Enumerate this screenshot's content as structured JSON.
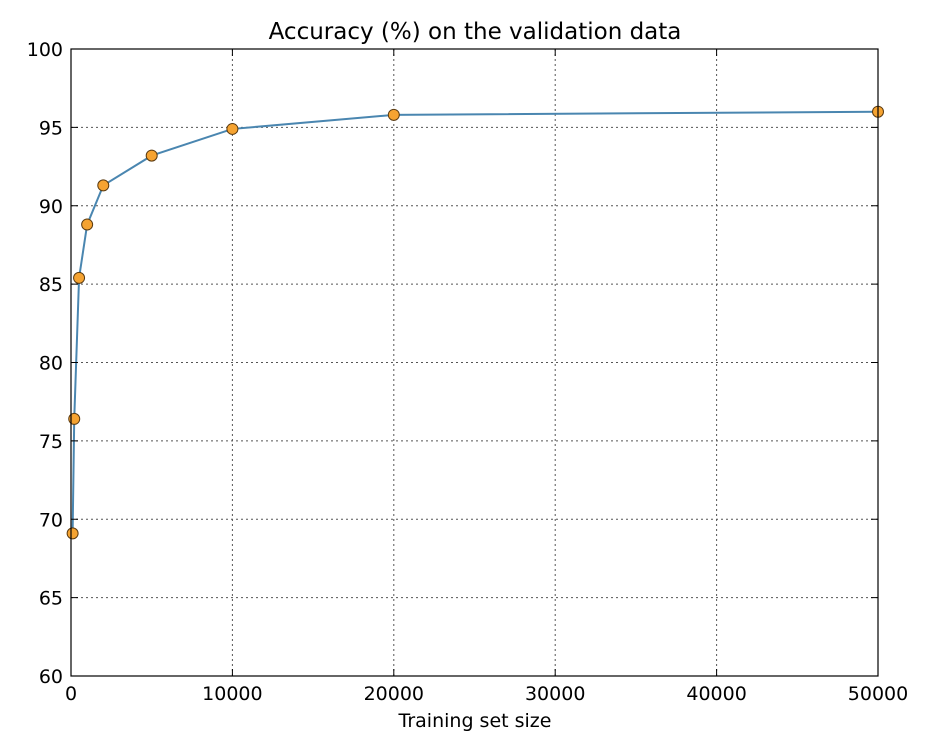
{
  "chart_data": {
    "type": "line",
    "title": "Accuracy (%) on the validation data",
    "xlabel": "Training set size",
    "ylabel": "",
    "xlim": [
      0,
      50000
    ],
    "ylim": [
      60,
      100
    ],
    "xticks": [
      0,
      10000,
      20000,
      30000,
      40000,
      50000
    ],
    "yticks": [
      60,
      65,
      70,
      75,
      80,
      85,
      90,
      95,
      100
    ],
    "grid": true,
    "x": [
      100,
      200,
      500,
      1000,
      2000,
      5000,
      10000,
      20000,
      50000
    ],
    "series": [
      {
        "values": [
          69.1,
          76.4,
          85.4,
          88.8,
          91.3,
          93.2,
          94.9,
          95.8,
          96.0
        ],
        "line_color": "#4a86b0",
        "marker_color": "#f5a331",
        "marker_edge_color": "#5a3a10"
      }
    ]
  }
}
